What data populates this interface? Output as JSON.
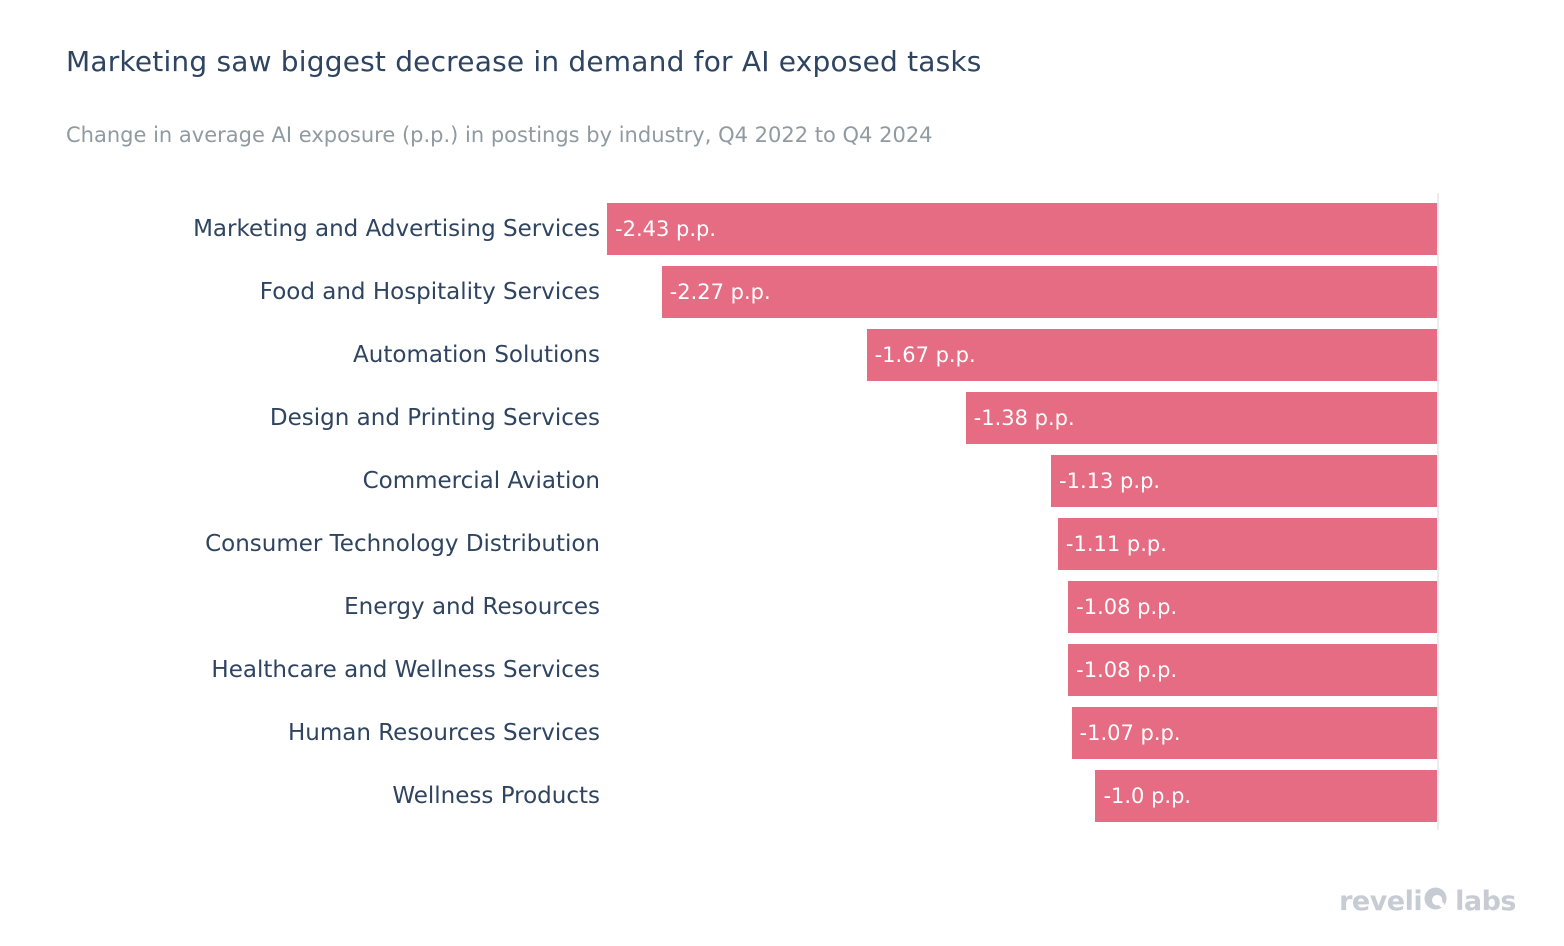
{
  "title": "Marketing saw biggest decrease in demand for AI exposed tasks",
  "subtitle": "Change in average AI exposure (p.p.) in postings by industry, Q4 2022 to Q4 2024",
  "footer": {
    "brand": "revelio labs",
    "brand_prefix": "reveli",
    "brand_suffix": "labs",
    "logo_icon": "revelio-o-logo"
  },
  "colors": {
    "bar": "#e56c82",
    "title_text": "#2e4460",
    "subtitle_text": "#909aa1",
    "category_label": "#2e4460",
    "value_label": "#ffffff",
    "zero_line": "#ececec",
    "watermark": "#c7cbd3",
    "background": "#ffffff"
  },
  "chart_data": {
    "type": "bar",
    "orientation": "horizontal",
    "title": "Marketing saw biggest decrease in demand for AI exposed tasks",
    "subtitle": "Change in average AI exposure (p.p.) in postings by industry, Q4 2022 to Q4 2024",
    "xlabel": "",
    "ylabel": "",
    "unit": "p.p.",
    "categories": [
      "Marketing and Advertising Services",
      "Food and Hospitality Services",
      "Automation Solutions",
      "Design and Printing Services",
      "Commercial Aviation",
      "Consumer Technology Distribution",
      "Energy and Resources",
      "Healthcare and Wellness Services",
      "Human Resources Services",
      "Wellness Products"
    ],
    "values": [
      -2.43,
      -2.27,
      -1.67,
      -1.38,
      -1.13,
      -1.11,
      -1.08,
      -1.08,
      -1.07,
      -1.0
    ],
    "value_labels": [
      "-2.43 p.p.",
      "-2.27 p.p.",
      "-1.67 p.p.",
      "-1.38 p.p.",
      "-1.13 p.p.",
      "-1.11 p.p.",
      "-1.08 p.p.",
      "-1.08 p.p.",
      "-1.07 p.p.",
      "-1.0 p.p."
    ],
    "xlim": [
      -2.43,
      0
    ],
    "bar_color": "#e56c82",
    "value_label_position": "inside-left",
    "grid": "off",
    "legend": "none"
  }
}
